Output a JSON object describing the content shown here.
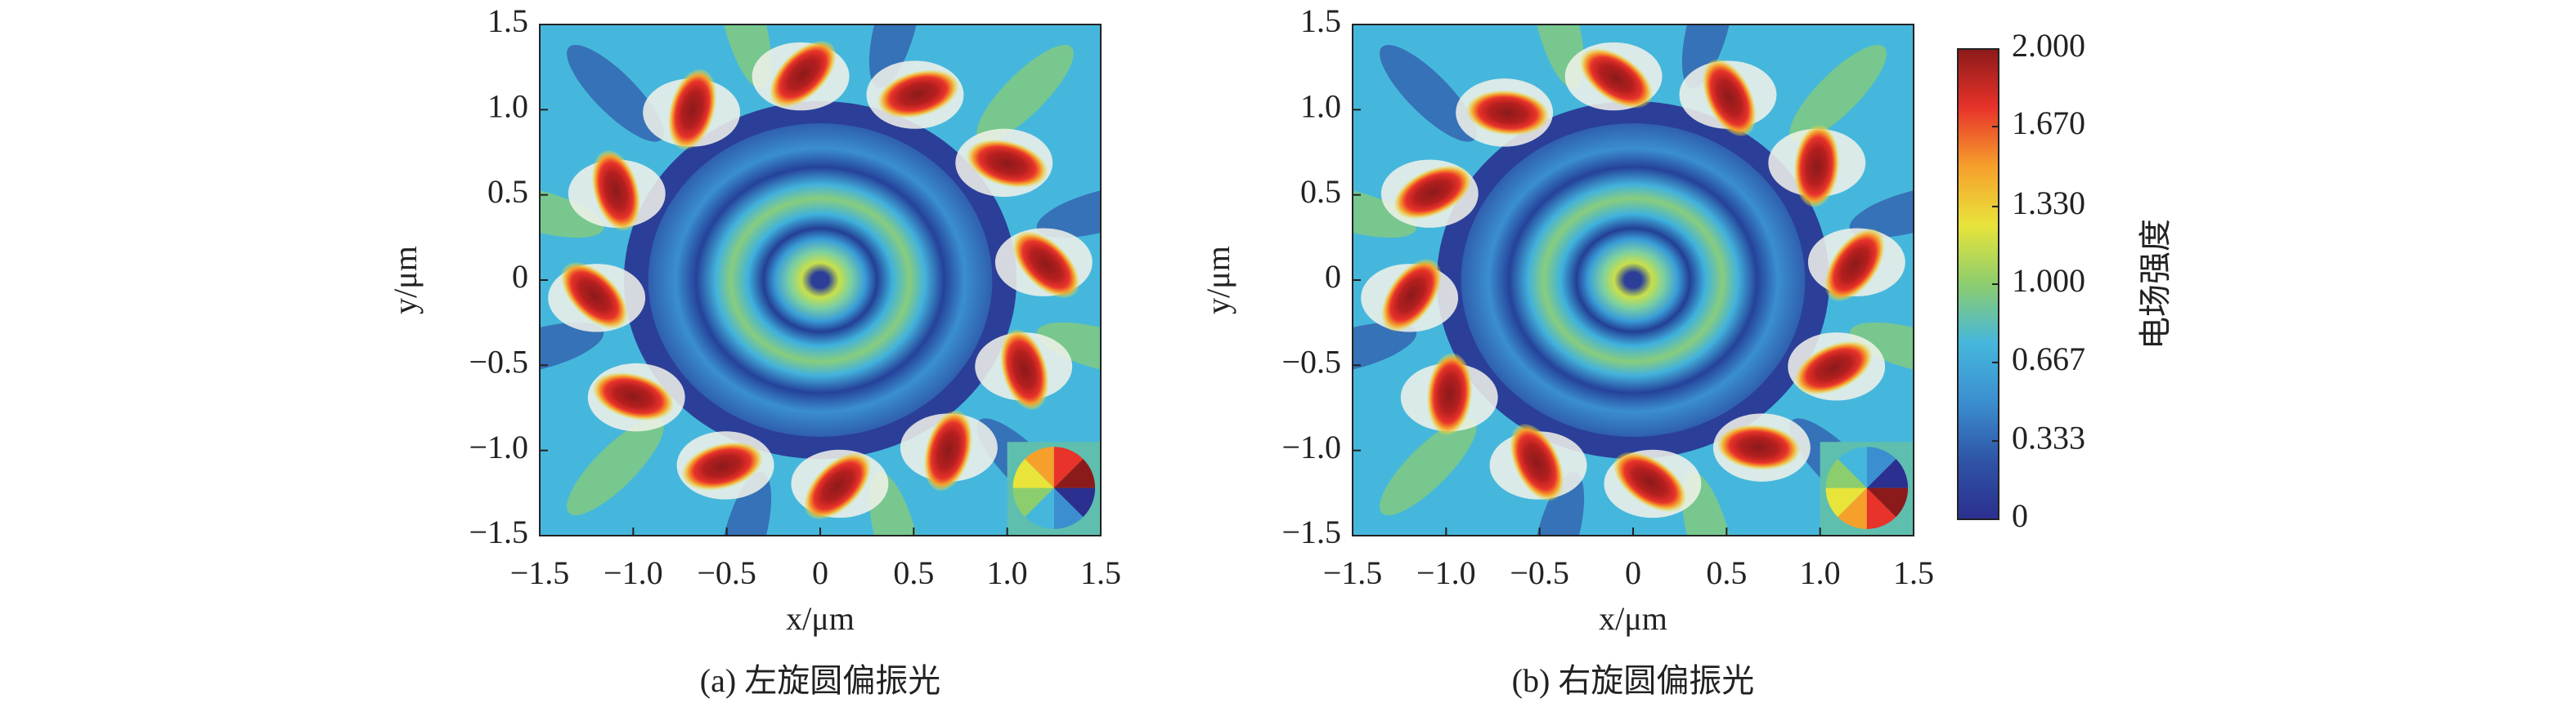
{
  "chart_data": [
    {
      "type": "heatmap",
      "caption": "(a) 左旋圆偏振光",
      "xlabel": "x/μm",
      "ylabel": "y/μm",
      "xlim": [
        -1.5,
        1.5
      ],
      "ylim": [
        -1.5,
        1.5
      ],
      "xticks": [
        {
          "value": -1.5,
          "label": "−1.5"
        },
        {
          "value": -1,
          "label": "−1.0"
        },
        {
          "value": -0.5,
          "label": "−0.5"
        },
        0,
        0.5,
        {
          "value": 1,
          "label": "1.0"
        },
        1.5
      ],
      "yticks": [
        {
          "value": -1.5,
          "label": "−1.5"
        },
        {
          "value": -1,
          "label": "−1.0"
        },
        {
          "value": -0.5,
          "label": "−0.5"
        },
        0,
        0.5,
        {
          "value": 1,
          "label": "1.0"
        },
        1.5
      ]
    },
    {
      "type": "heatmap",
      "caption": "(b) 右旋圆偏振光",
      "xlabel": "x/μm",
      "ylabel": "y/μm",
      "xlim": [
        -1.5,
        1.5
      ],
      "ylim": [
        -1.5,
        1.5
      ],
      "xticks": [
        {
          "value": -1.5,
          "label": "−1.5"
        },
        {
          "value": -1,
          "label": "−1.0"
        },
        {
          "value": -0.5,
          "label": "−0.5"
        },
        0,
        0.5,
        {
          "value": 1,
          "label": "1.0"
        },
        1.5
      ],
      "yticks": [
        {
          "value": -1.5,
          "label": "−1.5"
        },
        {
          "value": -1,
          "label": "−1.0"
        },
        {
          "value": -0.5,
          "label": "−0.5"
        },
        0,
        0.5,
        {
          "value": 1,
          "label": "1.0"
        },
        1.5
      ]
    }
  ],
  "colorbar": {
    "label": "电场强度",
    "clim": [
      0,
      2
    ],
    "ticks": [
      0,
      0.333,
      0.667,
      {
        "value": 1,
        "label": "1.000"
      },
      {
        "value": 1.33,
        "label": "1.330"
      },
      {
        "value": 1.67,
        "label": "1.670"
      },
      {
        "value": 2,
        "label": "2.000"
      }
    ],
    "colors": [
      "#2b2f8f",
      "#2f54a6",
      "#3b8fd0",
      "#46b7dc",
      "#8ccd6e",
      "#e8e43a",
      "#f6a02c",
      "#e8332a",
      "#8c1a1a"
    ]
  }
}
